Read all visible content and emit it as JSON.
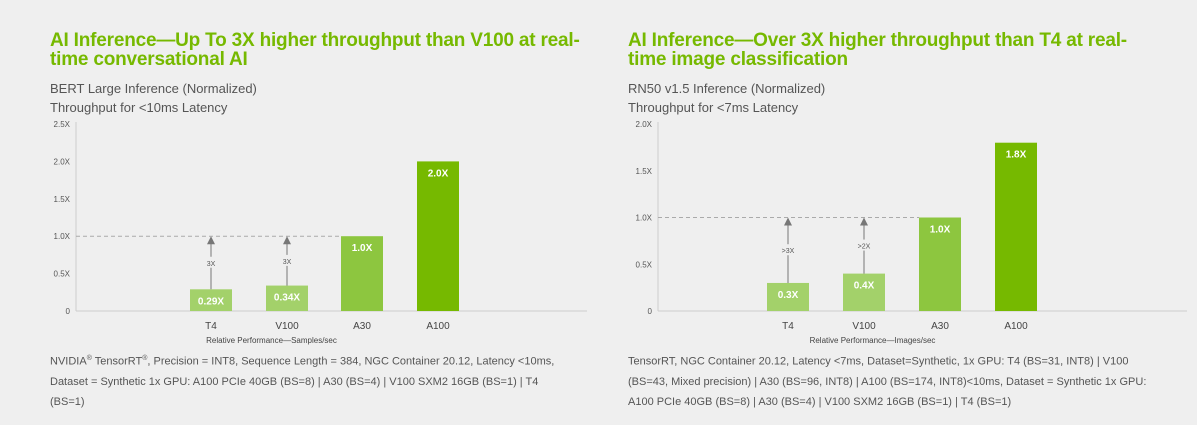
{
  "colors": {
    "accent": "#76b900",
    "bar_light": "#8dc63f",
    "bar_lighter": "#a3d16a",
    "bar_dark": "#76b900",
    "text": "#555555",
    "axis": "#cccccc",
    "dash": "#aaaaaa"
  },
  "charts": [
    {
      "headline": "AI Inference—Up To 3X higher throughput than V100 at real-time conversational AI",
      "subtitle1": "BERT Large Inference (Normalized)",
      "subtitle2": "Throughput for <10ms Latency",
      "footnote": {
        "pre1": "NVIDIA",
        "mark1": "®",
        "pre2": " TensorRT",
        "mark2": "®",
        "rest": ", Precision = INT8, Sequence Length = 384, NGC Container 20.12, Latency <10ms, Dataset = Synthetic 1x GPU: A100 PCIe 40GB (BS=8) | A30 (BS=4) | V100 SXM2 16GB (BS=1) | T4 (BS=1)"
      }
    },
    {
      "headline": "AI Inference—Over 3X higher throughput than T4 at real-time image classification",
      "subtitle1": "RN50 v1.5 Inference (Normalized)",
      "subtitle2": "Throughput for <7ms Latency",
      "footnote": {
        "pre1": "",
        "mark1": "",
        "pre2": "",
        "mark2": "",
        "rest": "TensorRT, NGC Container 20.12, Latency <7ms, Dataset=Synthetic, 1x GPU: T4 (BS=31, INT8) | V100 (BS=43, Mixed precision) | A30 (BS=96, INT8) | A100 (BS=174, INT8)<10ms, Dataset = Synthetic 1x GPU: A100 PCIe 40GB (BS=8) | A30 (BS=4) | V100 SXM2 16GB (BS=1) | T4 (BS=1)"
      }
    }
  ],
  "chart_data": [
    {
      "type": "bar",
      "title": "BERT Large Inference (Normalized)",
      "xlabel": "Relative Performance—Samples/sec",
      "ylabel": "",
      "categories": [
        "T4",
        "V100",
        "A30",
        "A100"
      ],
      "values": [
        0.29,
        0.34,
        1.0,
        2.0
      ],
      "value_labels": [
        "0.29X",
        "0.34X",
        "1.0X",
        "2.0X"
      ],
      "yticks": [
        0,
        0.5,
        1.0,
        1.5,
        2.0,
        2.5
      ],
      "ytick_labels": [
        "0",
        "0.5X",
        "1.0X",
        "1.5X",
        "2.0X",
        "2.5X"
      ],
      "ylim": [
        0,
        2.5
      ],
      "reference_line": 1.0,
      "annotations": [
        {
          "category": "T4",
          "label": "3X"
        },
        {
          "category": "V100",
          "label": "3X"
        }
      ]
    },
    {
      "type": "bar",
      "title": "RN50 v1.5 Inference (Normalized)",
      "xlabel": "Relative Performance—Images/sec",
      "ylabel": "",
      "categories": [
        "T4",
        "V100",
        "A30",
        "A100"
      ],
      "values": [
        0.3,
        0.4,
        1.0,
        1.8
      ],
      "value_labels": [
        "0.3X",
        "0.4X",
        "1.0X",
        "1.8X"
      ],
      "yticks": [
        0,
        0.5,
        1.0,
        1.5,
        2.0
      ],
      "ytick_labels": [
        "0",
        "0.5X",
        "1.0X",
        "1.5X",
        "2.0X"
      ],
      "ylim": [
        0,
        2.0
      ],
      "reference_line": 1.0,
      "annotations": [
        {
          "category": "T4",
          "label": ">3X"
        },
        {
          "category": "V100",
          "label": ">2X"
        }
      ]
    }
  ]
}
